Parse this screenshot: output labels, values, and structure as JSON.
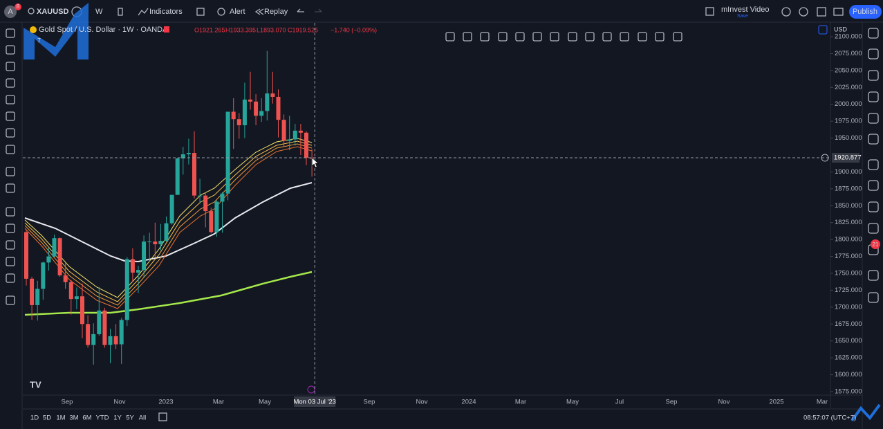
{
  "toolbar": {
    "avatar": "A",
    "badge": "8",
    "symbol": "XAUUSD",
    "interval": "W",
    "indicators": "Indicators",
    "alert": "Alert",
    "replay": "Replay",
    "layout_name": "mInvest Video",
    "save": "Save",
    "publish": "Publish"
  },
  "legend": {
    "title": "Gold Spot / U.S. Dollar · 1W · OANDA",
    "open": "O1921.265",
    "high": "H1933.395",
    "low": "L1893.070",
    "close": "C1919.525",
    "change": "−1.740 (−0.09%)",
    "count": "7"
  },
  "price_axis": {
    "currency": "USD"
  },
  "sidebar": {
    "badge": "21"
  },
  "bottom_bar": {
    "timeframes": [
      "1D",
      "5D",
      "1M",
      "3M",
      "6M",
      "YTD",
      "1Y",
      "5Y",
      "All"
    ],
    "clock": "08:57:07 (UTC+7)"
  },
  "chart_data": {
    "type": "candlestick",
    "up_color": "#26a69a",
    "down_color": "#ef5350",
    "open": [
      1811,
      1742,
      1703,
      1727,
      1766,
      1775,
      1802,
      1747,
      1737,
      1712,
      1716,
      1675,
      1644,
      1660,
      1695,
      1644,
      1657,
      1645,
      1681,
      1771,
      1751,
      1755,
      1797,
      1797,
      1793,
      1798,
      1824,
      1866,
      1920,
      1926,
      1928,
      1865,
      1865,
      1842,
      1811,
      1856,
      1868,
      1989,
      1978,
      1969,
      2007,
      2004,
      1983,
      1990,
      2016,
      2011,
      1977,
      1946,
      1948,
      1961,
      1958,
      1921.265
    ],
    "high": [
      1814,
      1745,
      1739,
      1767,
      1788,
      1807,
      1803,
      1765,
      1740,
      1729,
      1735,
      1688,
      1676,
      1730,
      1699,
      1668,
      1675,
      1684,
      1774,
      1787,
      1761,
      1806,
      1810,
      1825,
      1823,
      1834,
      1866,
      1921,
      1937,
      1949,
      1960,
      1890,
      1870,
      1847,
      1858,
      1870,
      1989,
      2009,
      1987,
      2032,
      2048,
      2015,
      2009,
      2079,
      2048,
      2022,
      1985,
      1983,
      1971,
      1971,
      1960,
      1933.395
    ],
    "low": [
      1732,
      1681,
      1680,
      1711,
      1754,
      1774,
      1745,
      1727,
      1689,
      1697,
      1654,
      1640,
      1615,
      1658,
      1640,
      1617,
      1638,
      1616,
      1672,
      1737,
      1721,
      1744,
      1767,
      1774,
      1784,
      1797,
      1822,
      1867,
      1896,
      1911,
      1861,
      1853,
      1818,
      1809,
      1804,
      1810,
      1858,
      1934,
      1949,
      1950,
      1992,
      1969,
      1974,
      1976,
      2001,
      1951,
      1937,
      1932,
      1939,
      1925,
      1910,
      1893.07
    ],
    "close": [
      1742,
      1703,
      1727,
      1766,
      1775,
      1802,
      1747,
      1737,
      1712,
      1716,
      1675,
      1644,
      1660,
      1695,
      1644,
      1657,
      1645,
      1681,
      1771,
      1751,
      1755,
      1797,
      1797,
      1793,
      1798,
      1824,
      1866,
      1920,
      1926,
      1928,
      1865,
      1865,
      1842,
      1811,
      1856,
      1868,
      1989,
      1978,
      1969,
      2007,
      2004,
      1983,
      1990,
      2016,
      2011,
      1977,
      1946,
      1948,
      1961,
      1958,
      1921,
      1919.525
    ],
    "ylim": [
      1575,
      2100
    ],
    "yticks": [
      {
        "value": 1575,
        "label": "1575.000"
      },
      {
        "value": 1600,
        "label": "1600.000"
      },
      {
        "value": 1625,
        "label": "1625.000"
      },
      {
        "value": 1650,
        "label": "1650.000"
      },
      {
        "value": 1675,
        "label": "1675.000"
      },
      {
        "value": 1700,
        "label": "1700.000"
      },
      {
        "value": 1725,
        "label": "1725.000"
      },
      {
        "value": 1750,
        "label": "1750.000"
      },
      {
        "value": 1775,
        "label": "1775.000"
      },
      {
        "value": 1800,
        "label": "1800.000"
      },
      {
        "value": 1825,
        "label": "1825.000"
      },
      {
        "value": 1850,
        "label": "1850.000"
      },
      {
        "value": 1875,
        "label": "1875.000"
      },
      {
        "value": 1900,
        "label": "1900.000"
      },
      {
        "value": 1950,
        "label": "1950.000"
      },
      {
        "value": 1975,
        "label": "1975.000"
      },
      {
        "value": 2000,
        "label": "2000.000"
      },
      {
        "value": 2025,
        "label": "2025.000"
      },
      {
        "value": 2050,
        "label": "2050.000"
      },
      {
        "value": 2075,
        "label": "2075.000"
      },
      {
        "value": 2100,
        "label": "2100.000"
      }
    ],
    "x_labels": [
      "Sep",
      "Nov",
      "2023",
      "Mar",
      "May",
      "Sep",
      "Nov",
      "2024",
      "Mar",
      "May",
      "Jul",
      "Sep",
      "Nov",
      "2025",
      "Mar"
    ],
    "crosshair": {
      "price": 1920.877,
      "date": "Mon 03 Jul '23"
    }
  }
}
